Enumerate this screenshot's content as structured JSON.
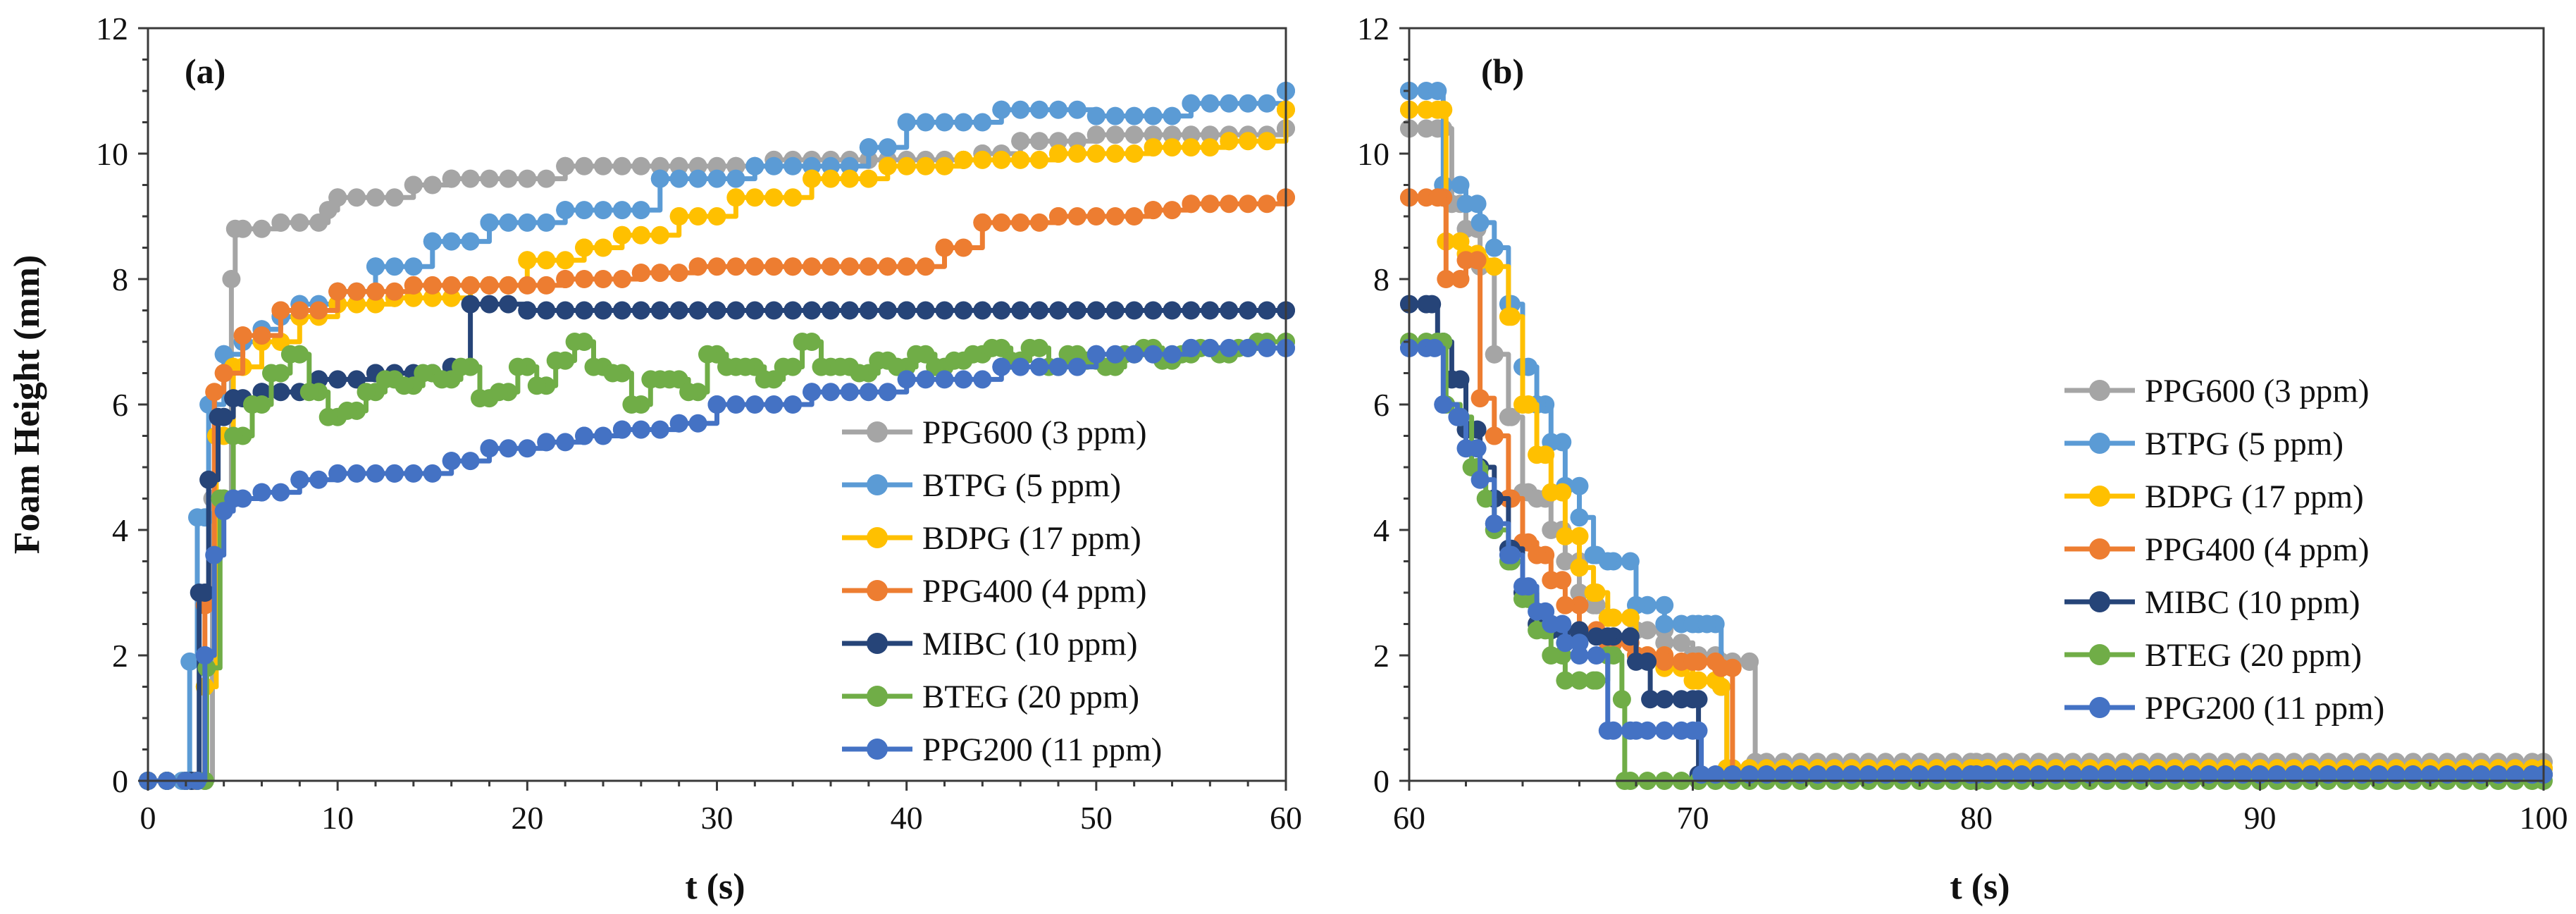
{
  "colors": {
    "PPG600": "#a5a5a5",
    "BTPG": "#5b9bd5",
    "BDPG": "#ffc000",
    "PPG400": "#ed7d31",
    "MIBC": "#264478",
    "BTEG": "#70ad47",
    "PPG200": "#4472c4"
  },
  "chart_data": [
    {
      "type": "line",
      "panel_label": "(a)",
      "xlabel": "t (s)",
      "ylabel": "Foam Height (mm)",
      "xlim": [
        0,
        60
      ],
      "ylim": [
        0,
        12
      ],
      "x_ticks": [
        "0",
        "10",
        "20",
        "30",
        "40",
        "50",
        "60"
      ],
      "y_ticks": [
        "0",
        "2",
        "4",
        "6",
        "8",
        "10",
        "12"
      ],
      "legend_position": "lower-right",
      "series": [
        {
          "name": "PPG600 (3 ppm)",
          "key": "PPG600",
          "x": [
            0,
            2.6,
            3.4,
            4.4,
            4.6,
            7,
            9.5,
            10,
            14,
            16,
            22,
            31,
            33,
            44,
            46,
            50,
            60
          ],
          "y": [
            0,
            0,
            4.5,
            8.0,
            8.8,
            8.9,
            9.1,
            9.3,
            9.5,
            9.6,
            9.8,
            9.8,
            9.9,
            10.0,
            10.2,
            10.3,
            10.4
          ]
        },
        {
          "name": "BTPG (5 ppm)",
          "key": "BTPG",
          "x": [
            0,
            1.8,
            2.2,
            2.6,
            3.2,
            4,
            5,
            6,
            7,
            8,
            10,
            12,
            15,
            18,
            22,
            27,
            32,
            38,
            40,
            45,
            50,
            55,
            60
          ],
          "y": [
            0,
            0,
            1.9,
            4.2,
            6.0,
            6.8,
            7.0,
            7.2,
            7.4,
            7.6,
            7.8,
            8.2,
            8.6,
            8.9,
            9.1,
            9.6,
            9.8,
            10.1,
            10.5,
            10.7,
            10.6,
            10.8,
            11.0
          ]
        },
        {
          "name": "BDPG (17 ppm)",
          "key": "BDPG",
          "x": [
            0,
            2.6,
            3,
            3.6,
            4.5,
            6,
            8,
            10,
            13,
            17,
            20,
            23,
            25,
            28,
            31,
            35,
            39,
            43,
            48,
            53,
            57,
            60
          ],
          "y": [
            0,
            0,
            1.5,
            5.5,
            6.6,
            7.0,
            7.4,
            7.6,
            7.7,
            7.9,
            8.3,
            8.5,
            8.7,
            9.0,
            9.3,
            9.6,
            9.8,
            9.9,
            10.0,
            10.1,
            10.2,
            10.7
          ]
        },
        {
          "name": "PPG400 (4 ppm)",
          "key": "PPG400",
          "x": [
            0,
            2.5,
            3,
            3.5,
            4,
            5,
            7,
            10,
            14,
            18,
            22,
            26,
            29,
            34,
            39,
            42,
            44,
            48,
            53,
            55,
            60
          ],
          "y": [
            0,
            0,
            2.8,
            6.2,
            6.5,
            7.1,
            7.5,
            7.8,
            7.9,
            7.9,
            8.0,
            8.1,
            8.2,
            8.2,
            8.2,
            8.5,
            8.9,
            9.0,
            9.1,
            9.2,
            9.3
          ]
        },
        {
          "name": "MIBC (10 ppm)",
          "key": "MIBC",
          "x": [
            0,
            2.3,
            2.7,
            3.2,
            3.7,
            4.5,
            6,
            9,
            12,
            16,
            17,
            20,
            30,
            40,
            50,
            60
          ],
          "y": [
            0,
            0,
            3.0,
            4.8,
            5.8,
            6.1,
            6.2,
            6.4,
            6.5,
            6.6,
            7.6,
            7.5,
            7.5,
            7.5,
            7.5,
            7.5
          ]
        },
        {
          "name": "BTEG (20 ppm)",
          "key": "BTEG",
          "x": [
            0,
            2.6,
            3.1,
            3.8,
            4.5,
            5.5,
            6.5,
            7.5,
            8.5,
            9.5,
            10.5,
            11.5,
            12.5,
            13.5,
            14.5,
            15.5,
            16.5,
            17.5,
            18.5,
            19.5,
            20.5,
            21.5,
            22.5,
            23.5,
            24.5,
            25.5,
            26.5,
            27.5,
            28.5,
            29.5,
            30.5,
            31.5,
            32.5,
            33.5,
            34.5,
            35.5,
            36.5,
            37.5,
            38.5,
            39.5,
            40.5,
            41.5,
            42.5,
            43.5,
            44.5,
            45.5,
            46.5,
            47.5,
            48.5,
            49.5,
            50.5,
            51.5,
            52.5,
            53.5,
            54.5,
            55.5,
            56.5,
            57.5,
            58.5,
            60
          ],
          "y": [
            0,
            0,
            1.8,
            4.5,
            5.5,
            6.0,
            6.5,
            6.8,
            6.2,
            5.8,
            5.9,
            6.2,
            6.4,
            6.3,
            6.5,
            6.4,
            6.6,
            6.1,
            6.2,
            6.6,
            6.3,
            6.7,
            7.0,
            6.6,
            6.5,
            6.0,
            6.4,
            6.4,
            6.2,
            6.8,
            6.6,
            6.6,
            6.4,
            6.6,
            7.0,
            6.6,
            6.6,
            6.5,
            6.7,
            6.6,
            6.8,
            6.6,
            6.7,
            6.8,
            6.9,
            6.7,
            6.9,
            6.6,
            6.8,
            6.7,
            6.6,
            6.8,
            6.9,
            6.7,
            6.8,
            6.9,
            6.8,
            6.9,
            7.0,
            7.0
          ]
        },
        {
          "name": "PPG200 (11 ppm)",
          "key": "PPG200",
          "x": [
            0,
            2.6,
            3,
            3.5,
            4,
            4.5,
            6,
            8,
            10,
            13,
            16,
            18,
            21,
            23,
            25,
            28,
            30,
            35,
            40,
            45,
            50,
            55,
            60
          ],
          "y": [
            0,
            0,
            2.0,
            3.6,
            4.3,
            4.5,
            4.6,
            4.8,
            4.9,
            4.9,
            5.1,
            5.3,
            5.4,
            5.5,
            5.6,
            5.7,
            6.0,
            6.2,
            6.4,
            6.6,
            6.8,
            6.9,
            6.9
          ]
        }
      ]
    },
    {
      "type": "line",
      "panel_label": "(b)",
      "xlabel": "t (s)",
      "ylabel": "",
      "xlim": [
        60,
        100
      ],
      "ylim": [
        0,
        12
      ],
      "x_ticks": [
        "60",
        "70",
        "80",
        "90",
        "100"
      ],
      "y_ticks": [
        "0",
        "2",
        "4",
        "6",
        "8",
        "10",
        "12"
      ],
      "legend_position": "right",
      "series": [
        {
          "name": "PPG600 (3 ppm)",
          "key": "PPG600",
          "x": [
            60,
            61,
            61.5,
            62,
            62.5,
            63,
            63.5,
            64,
            64.5,
            65,
            65.5,
            66,
            66.5,
            67,
            68,
            69,
            70,
            71,
            72,
            72.2,
            80,
            90,
            100
          ],
          "y": [
            10.4,
            10.4,
            9.2,
            8.8,
            8.2,
            6.8,
            5.8,
            4.6,
            4.5,
            4.0,
            3.5,
            3.0,
            2.8,
            2.6,
            2.4,
            2.2,
            2.0,
            1.9,
            1.9,
            0.3,
            0.3,
            0.3,
            0.3
          ]
        },
        {
          "name": "BTPG (5 ppm)",
          "key": "BTPG",
          "x": [
            60,
            61,
            61.2,
            62,
            62.5,
            63,
            63.5,
            64,
            64.5,
            65,
            65.5,
            66,
            66.5,
            67,
            68,
            69,
            70,
            70.5,
            71,
            71.2,
            80,
            90,
            100
          ],
          "y": [
            11.0,
            11.0,
            9.5,
            9.2,
            8.9,
            8.5,
            7.6,
            6.6,
            6.0,
            5.4,
            4.7,
            4.2,
            3.6,
            3.5,
            2.8,
            2.5,
            2.5,
            2.5,
            1.5,
            0.2,
            0.2,
            0.2,
            0.2
          ]
        },
        {
          "name": "BDPG (17 ppm)",
          "key": "BDPG",
          "x": [
            60,
            61,
            61.3,
            62,
            62.5,
            63,
            63.5,
            64,
            64.5,
            65,
            65.5,
            66,
            66.5,
            67,
            68,
            69,
            70,
            70.8,
            71,
            71.2,
            80,
            90,
            100
          ],
          "y": [
            10.7,
            10.7,
            8.6,
            8.4,
            8.3,
            8.2,
            7.4,
            6.0,
            5.2,
            4.6,
            3.9,
            3.4,
            3.0,
            2.6,
            2.0,
            1.8,
            1.6,
            1.6,
            1.5,
            0.2,
            0.2,
            0.2,
            0.2
          ]
        },
        {
          "name": "PPG400 (4 ppm)",
          "key": "PPG400",
          "x": [
            60,
            61,
            61.3,
            62,
            62.5,
            63,
            63.5,
            64,
            64.5,
            65,
            65.5,
            66,
            67,
            68,
            69,
            70,
            71,
            71.4,
            80,
            90,
            100
          ],
          "y": [
            9.3,
            9.3,
            8.0,
            8.3,
            6.1,
            5.5,
            4.5,
            3.8,
            3.6,
            3.2,
            2.8,
            2.4,
            2.2,
            2.0,
            1.9,
            1.9,
            1.8,
            0.1,
            0.1,
            0.1,
            0.1
          ]
        },
        {
          "name": "MIBC (10 ppm)",
          "key": "MIBC",
          "x": [
            60,
            60.8,
            61,
            61.5,
            62,
            62.5,
            63,
            63.5,
            64,
            64.5,
            65,
            66,
            67,
            68,
            68.5,
            69,
            70,
            70.2,
            80,
            90,
            100
          ],
          "y": [
            7.6,
            7.6,
            7.0,
            6.4,
            5.6,
            5.0,
            4.5,
            3.7,
            3.0,
            2.5,
            2.4,
            2.3,
            2.3,
            1.9,
            1.3,
            1.3,
            1.3,
            0.1,
            0.1,
            0.1,
            0.1
          ]
        },
        {
          "name": "BTEG (20 ppm)",
          "key": "BTEG",
          "x": [
            60,
            61,
            61.3,
            61.8,
            62.2,
            62.7,
            63,
            63.5,
            64,
            64.5,
            65,
            65.5,
            66,
            66.5,
            67,
            67.5,
            67.6,
            80,
            90,
            100
          ],
          "y": [
            7.0,
            7.0,
            6.0,
            5.8,
            5.0,
            4.5,
            4.0,
            3.5,
            2.9,
            2.4,
            2.0,
            1.6,
            1.6,
            1.6,
            2.0,
            1.3,
            0,
            0,
            0,
            0
          ]
        },
        {
          "name": "PPG200 (11 ppm)",
          "key": "PPG200",
          "x": [
            60,
            60.9,
            61.2,
            61.7,
            62,
            62.5,
            63,
            63.5,
            64,
            64.5,
            65,
            65.5,
            66,
            67,
            68,
            69,
            70,
            70.3,
            80,
            90,
            100
          ],
          "y": [
            6.9,
            6.9,
            6.0,
            5.8,
            5.3,
            4.8,
            4.1,
            3.6,
            3.1,
            2.7,
            2.5,
            2.2,
            2.0,
            0.8,
            0.8,
            0.8,
            0.8,
            0.1,
            0.1,
            0.1,
            0.1
          ]
        }
      ]
    }
  ]
}
